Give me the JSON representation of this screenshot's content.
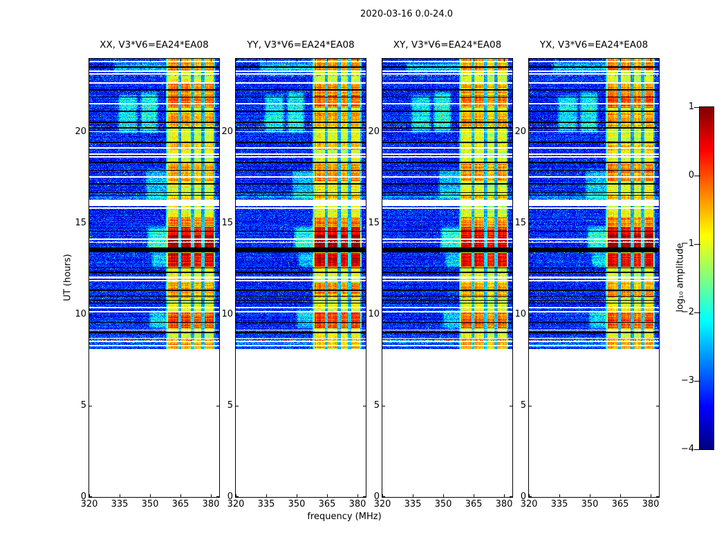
{
  "chart_data": {
    "type": "heatmap",
    "colormap": "jet",
    "title": "2020-03-16 0.0-24.0",
    "xlabel": "frequency (MHz)",
    "ylabel": "UT (hours)",
    "x_range": [
      320,
      384
    ],
    "x_ticks": [
      "320",
      "335",
      "350",
      "365",
      "380"
    ],
    "y_range": [
      0,
      24
    ],
    "y_ticks": [
      "0",
      "5",
      "10",
      "15",
      "20"
    ],
    "panels": [
      {
        "label": "XX, V3*V6=EA24*EA08",
        "intensity": 1.0
      },
      {
        "label": "YY, V3*V6=EA24*EA08",
        "intensity": 1.1
      },
      {
        "label": "XY, V3*V6=EA24*EA08",
        "intensity": 0.92
      },
      {
        "label": "YX, V3*V6=EA24*EA08",
        "intensity": 1.05
      }
    ],
    "colorbar": {
      "label": "log₁₀ amplitude",
      "tick_labels": [
        "1",
        "0",
        "−1",
        "−2",
        "−3",
        "−4"
      ],
      "tick_values": [
        1,
        0,
        -1,
        -2,
        -3,
        -4
      ],
      "range": [
        -4,
        1
      ]
    },
    "coverage_hours": [
      8.1,
      24
    ],
    "background_level": -3.25,
    "noise_amplitude": 0.55,
    "emission_band": {
      "extent_mhz": [
        357.8,
        381.9
      ],
      "subbands_mhz": [
        [
          358.7,
          363.8
        ],
        [
          365.4,
          370.0
        ],
        [
          371.6,
          375.1
        ],
        [
          376.7,
          381.2
        ]
      ],
      "subband_levels": [
        -0.95,
        -1.0,
        -1.12,
        -1.02
      ],
      "gap_level": -2.55
    },
    "hotspots_hours": [
      [
        8.15,
        8.75,
        0.55
      ],
      [
        9.25,
        10.2,
        0.95
      ],
      [
        10.9,
        11.75,
        0.6
      ],
      [
        12.6,
        13.38,
        1.45
      ],
      [
        13.67,
        14.35,
        1.75
      ],
      [
        14.35,
        14.8,
        1.3
      ],
      [
        14.85,
        15.35,
        0.7
      ],
      [
        16.3,
        16.55,
        0.45
      ],
      [
        17.3,
        18.25,
        0.65
      ],
      [
        19.0,
        19.5,
        0.35
      ],
      [
        20.3,
        21.05,
        0.55
      ],
      [
        21.3,
        22.0,
        0.85
      ],
      [
        22.0,
        22.65,
        0.6
      ],
      [
        23.35,
        24.0,
        0.7
      ]
    ],
    "cyan_patches": [
      {
        "f": [
          334.5,
          343.5
        ],
        "h": [
          20.0,
          22.0
        ],
        "amp": 1.05
      },
      {
        "f": [
          345.5,
          353.5
        ],
        "h": [
          20.0,
          22.15
        ],
        "amp": 1.15
      },
      {
        "f": [
          349.0,
          358.5
        ],
        "h": [
          13.45,
          14.75
        ],
        "amp": 1.25
      },
      {
        "f": [
          348.0,
          358.5
        ],
        "h": [
          16.3,
          17.9
        ],
        "amp": 0.8
      },
      {
        "f": [
          332.0,
          360.0
        ],
        "h": [
          23.25,
          23.8
        ],
        "amp": 0.85
      },
      {
        "f": [
          350.0,
          358.7
        ],
        "h": [
          9.25,
          10.2
        ],
        "amp": 0.9
      },
      {
        "f": [
          351.0,
          358.7
        ],
        "h": [
          12.6,
          13.35
        ],
        "amp": 0.9
      },
      {
        "f": [
          320.0,
          384.0
        ],
        "h": [
          16.32,
          16.5
        ],
        "amp": 0.7
      },
      {
        "f": [
          320.0,
          384.0
        ],
        "h": [
          8.2,
          8.75
        ],
        "amp": 0.45
      }
    ],
    "gap_stripes_hours": {
      "white": [
        [
          8.3,
          0.08
        ],
        [
          8.52,
          0.07
        ],
        [
          8.68,
          0.06
        ],
        [
          9.15,
          0.05
        ],
        [
          10.15,
          0.05
        ],
        [
          10.38,
          0.09
        ],
        [
          11.86,
          0.07
        ],
        [
          12.02,
          0.1
        ],
        [
          13.95,
          0.07
        ],
        [
          14.12,
          0.06
        ],
        [
          15.81,
          0.07
        ],
        [
          16.12,
          0.35
        ],
        [
          17.52,
          0.08
        ],
        [
          18.62,
          0.08
        ],
        [
          18.78,
          0.07
        ],
        [
          19.12,
          0.1
        ],
        [
          20.0,
          0.05
        ],
        [
          21.55,
          0.09
        ],
        [
          22.68,
          0.07
        ],
        [
          23.18,
          0.08
        ],
        [
          23.32,
          0.07
        ],
        [
          23.85,
          0.06
        ]
      ],
      "black": [
        [
          9.0,
          0.06
        ],
        [
          9.55,
          0.05
        ],
        [
          10.62,
          0.07
        ],
        [
          10.78,
          0.05
        ],
        [
          11.0,
          0.04
        ],
        [
          11.32,
          0.06
        ],
        [
          12.3,
          0.05
        ],
        [
          12.55,
          0.05
        ],
        [
          13.53,
          0.27
        ],
        [
          14.55,
          0.04
        ],
        [
          16.52,
          0.06
        ],
        [
          16.68,
          0.05
        ],
        [
          17.15,
          0.06
        ],
        [
          17.9,
          0.04
        ],
        [
          18.32,
          0.07
        ],
        [
          19.42,
          0.06
        ],
        [
          20.22,
          0.05
        ],
        [
          20.52,
          0.06
        ],
        [
          21.12,
          0.07
        ],
        [
          21.9,
          0.04
        ],
        [
          22.3,
          0.05
        ],
        [
          23.55,
          0.06
        ]
      ]
    },
    "speckle_rows_hours": [
      8.58,
      12.05,
      13.98,
      20.28,
      23.08
    ]
  }
}
